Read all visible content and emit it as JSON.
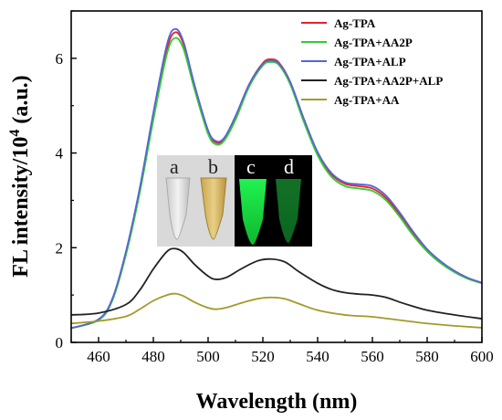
{
  "chart_data": {
    "type": "line",
    "xlabel": "Wavelength (nm)",
    "ylabel_main": "FL intensity/10",
    "ylabel_sup": "4",
    "ylabel_unit": " (a.u.)",
    "xlim": [
      450,
      600
    ],
    "ylim": [
      0,
      7
    ],
    "x_ticks": [
      460,
      480,
      500,
      520,
      540,
      560,
      580,
      600
    ],
    "y_ticks": [
      0,
      2,
      4,
      6
    ],
    "legend_position": "top-right",
    "series": [
      {
        "name": "Ag-TPA",
        "color": "#e8202a",
        "points": [
          [
            450,
            0.3
          ],
          [
            460,
            0.48
          ],
          [
            465,
            0.9
          ],
          [
            470,
            1.9
          ],
          [
            475,
            3.2
          ],
          [
            480,
            4.8
          ],
          [
            485,
            6.2
          ],
          [
            488,
            6.55
          ],
          [
            491,
            6.3
          ],
          [
            495,
            5.4
          ],
          [
            500,
            4.45
          ],
          [
            503,
            4.22
          ],
          [
            506,
            4.3
          ],
          [
            510,
            4.75
          ],
          [
            515,
            5.45
          ],
          [
            520,
            5.9
          ],
          [
            523,
            5.98
          ],
          [
            526,
            5.9
          ],
          [
            530,
            5.5
          ],
          [
            535,
            4.7
          ],
          [
            540,
            4.0
          ],
          [
            545,
            3.55
          ],
          [
            550,
            3.35
          ],
          [
            555,
            3.3
          ],
          [
            560,
            3.25
          ],
          [
            565,
            3.05
          ],
          [
            570,
            2.7
          ],
          [
            575,
            2.3
          ],
          [
            580,
            1.95
          ],
          [
            585,
            1.7
          ],
          [
            590,
            1.5
          ],
          [
            595,
            1.35
          ],
          [
            600,
            1.25
          ]
        ]
      },
      {
        "name": "Ag-TPA+AA2P",
        "color": "#33cc33",
        "points": [
          [
            450,
            0.3
          ],
          [
            460,
            0.47
          ],
          [
            465,
            0.88
          ],
          [
            470,
            1.85
          ],
          [
            475,
            3.15
          ],
          [
            480,
            4.7
          ],
          [
            485,
            6.1
          ],
          [
            488,
            6.43
          ],
          [
            491,
            6.2
          ],
          [
            495,
            5.35
          ],
          [
            500,
            4.4
          ],
          [
            503,
            4.18
          ],
          [
            506,
            4.27
          ],
          [
            510,
            4.7
          ],
          [
            515,
            5.4
          ],
          [
            520,
            5.85
          ],
          [
            523,
            5.92
          ],
          [
            526,
            5.85
          ],
          [
            530,
            5.45
          ],
          [
            535,
            4.65
          ],
          [
            540,
            3.95
          ],
          [
            545,
            3.5
          ],
          [
            550,
            3.3
          ],
          [
            555,
            3.25
          ],
          [
            560,
            3.2
          ],
          [
            565,
            3.0
          ],
          [
            570,
            2.65
          ],
          [
            575,
            2.25
          ],
          [
            580,
            1.92
          ],
          [
            585,
            1.67
          ],
          [
            590,
            1.48
          ],
          [
            595,
            1.34
          ],
          [
            600,
            1.25
          ]
        ]
      },
      {
        "name": "Ag-TPA+ALP",
        "color": "#5a62d8",
        "points": [
          [
            450,
            0.3
          ],
          [
            460,
            0.49
          ],
          [
            465,
            0.92
          ],
          [
            470,
            1.92
          ],
          [
            475,
            3.25
          ],
          [
            480,
            4.85
          ],
          [
            485,
            6.3
          ],
          [
            488,
            6.62
          ],
          [
            491,
            6.35
          ],
          [
            495,
            5.45
          ],
          [
            500,
            4.48
          ],
          [
            503,
            4.25
          ],
          [
            506,
            4.33
          ],
          [
            510,
            4.78
          ],
          [
            515,
            5.45
          ],
          [
            520,
            5.88
          ],
          [
            523,
            5.95
          ],
          [
            526,
            5.88
          ],
          [
            530,
            5.5
          ],
          [
            535,
            4.72
          ],
          [
            540,
            4.02
          ],
          [
            545,
            3.58
          ],
          [
            550,
            3.38
          ],
          [
            555,
            3.34
          ],
          [
            560,
            3.3
          ],
          [
            565,
            3.1
          ],
          [
            570,
            2.74
          ],
          [
            575,
            2.33
          ],
          [
            580,
            1.97
          ],
          [
            585,
            1.71
          ],
          [
            590,
            1.51
          ],
          [
            595,
            1.36
          ],
          [
            600,
            1.26
          ]
        ]
      },
      {
        "name": "Ag-TPA+AA2P+ALP",
        "color": "#222222",
        "points": [
          [
            450,
            0.58
          ],
          [
            460,
            0.62
          ],
          [
            470,
            0.8
          ],
          [
            475,
            1.1
          ],
          [
            480,
            1.55
          ],
          [
            485,
            1.92
          ],
          [
            488,
            1.98
          ],
          [
            491,
            1.9
          ],
          [
            495,
            1.65
          ],
          [
            500,
            1.4
          ],
          [
            503,
            1.33
          ],
          [
            507,
            1.38
          ],
          [
            512,
            1.55
          ],
          [
            518,
            1.72
          ],
          [
            523,
            1.76
          ],
          [
            528,
            1.7
          ],
          [
            533,
            1.5
          ],
          [
            540,
            1.25
          ],
          [
            545,
            1.12
          ],
          [
            550,
            1.05
          ],
          [
            555,
            1.02
          ],
          [
            560,
            1.0
          ],
          [
            565,
            0.95
          ],
          [
            570,
            0.85
          ],
          [
            575,
            0.76
          ],
          [
            580,
            0.68
          ],
          [
            590,
            0.58
          ],
          [
            600,
            0.5
          ]
        ]
      },
      {
        "name": "Ag-TPA+AA",
        "color": "#a39a2a",
        "points": [
          [
            450,
            0.4
          ],
          [
            460,
            0.45
          ],
          [
            470,
            0.55
          ],
          [
            475,
            0.7
          ],
          [
            480,
            0.88
          ],
          [
            485,
            1.0
          ],
          [
            488,
            1.03
          ],
          [
            491,
            0.98
          ],
          [
            495,
            0.85
          ],
          [
            500,
            0.73
          ],
          [
            503,
            0.7
          ],
          [
            507,
            0.74
          ],
          [
            512,
            0.83
          ],
          [
            518,
            0.92
          ],
          [
            523,
            0.95
          ],
          [
            528,
            0.92
          ],
          [
            533,
            0.82
          ],
          [
            540,
            0.68
          ],
          [
            550,
            0.58
          ],
          [
            560,
            0.54
          ],
          [
            570,
            0.47
          ],
          [
            580,
            0.4
          ],
          [
            590,
            0.35
          ],
          [
            600,
            0.31
          ]
        ]
      }
    ],
    "inset_labels": [
      "a",
      "b",
      "c",
      "d"
    ]
  }
}
